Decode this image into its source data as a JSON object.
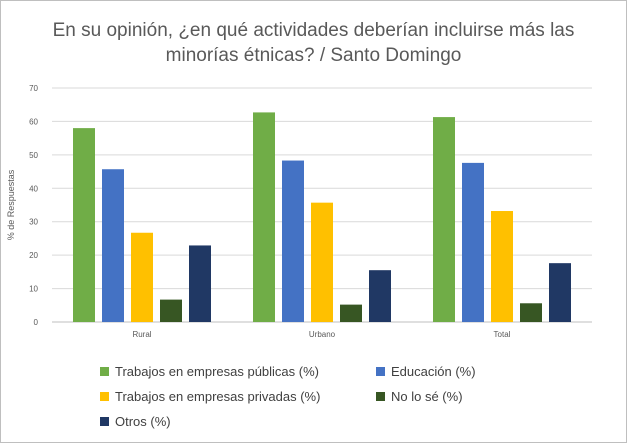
{
  "title_line1": "En su opinión, ¿en qué actividades deberían incluirse más las",
  "title_line2": "minorías étnicas? / Santo Domingo",
  "chart_data": {
    "type": "bar",
    "title": "En su opinión, ¿en qué actividades deberían incluirse más las minorías étnicas? / Santo Domingo",
    "xlabel": "",
    "ylabel": "% de Respuestas",
    "ylim": [
      0,
      70
    ],
    "yticks": [
      0,
      10,
      20,
      30,
      40,
      50,
      60,
      70
    ],
    "grid": true,
    "legend_position": "bottom",
    "categories": [
      "Rural",
      "Urbano",
      "Total"
    ],
    "series": [
      {
        "name": "Trabajos en empresas públicas (%)",
        "color": "#70ad47",
        "values": [
          58,
          62.7,
          61.3
        ]
      },
      {
        "name": "Educación (%)",
        "color": "#4472c4",
        "values": [
          45.7,
          48.3,
          47.6
        ]
      },
      {
        "name": "Trabajos en empresas privadas (%)",
        "color": "#ffc000",
        "values": [
          26.7,
          35.7,
          33.2
        ]
      },
      {
        "name": "No lo sé (%)",
        "color": "#375623",
        "values": [
          6.7,
          5.2,
          5.6
        ]
      },
      {
        "name": "Otros (%)",
        "color": "#203864",
        "values": [
          22.9,
          15.5,
          17.6
        ]
      }
    ]
  }
}
